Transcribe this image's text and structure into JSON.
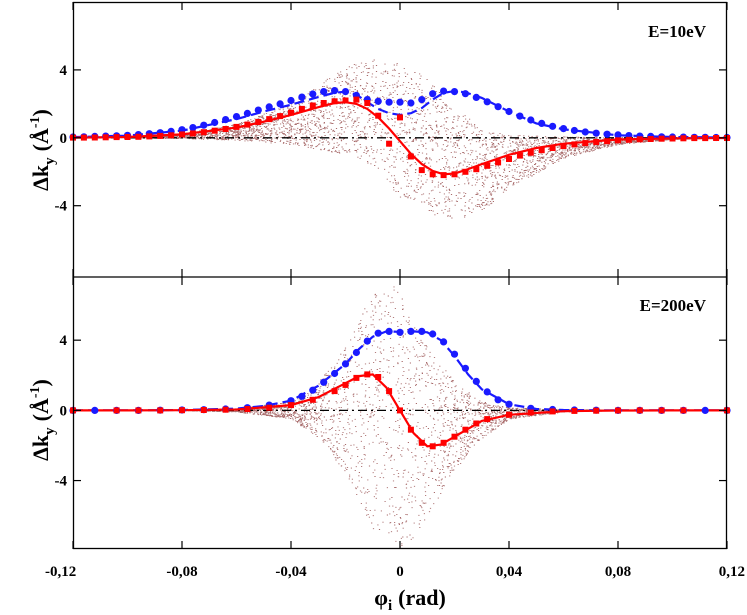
{
  "chart_data": {
    "type": "scatter",
    "x_axis": {
      "label_symbol": "φ",
      "label_subscript": "i",
      "label_unit": "(rad)",
      "range": [
        -0.12,
        0.12
      ],
      "ticks": [
        -0.12,
        -0.08,
        -0.04,
        0,
        0.04,
        0.08,
        0.12
      ],
      "tick_labels": [
        "-0,12",
        "-0,08",
        "-0,04",
        "0",
        "0,04",
        "0,08",
        "0,12"
      ]
    },
    "y_axis_label": {
      "prefix": "Δk",
      "subscript": "y",
      "open": "(",
      "unit": "Å",
      "superscript": "-1",
      "close": ")"
    },
    "colors": {
      "blue": "#1a1aff",
      "red": "#ff0000",
      "scatter": "#8b3a3a",
      "zero_line": "#000000"
    },
    "panels": [
      {
        "energy_label": "E=10eV",
        "ylim": [
          -8.2,
          8.0
        ],
        "yticks": [
          -4,
          0,
          4
        ],
        "ytick_labels": [
          "-4",
          "0",
          "4"
        ],
        "series": [
          {
            "name": "blue circles",
            "x": [
              -0.12,
              -0.116,
              -0.112,
              -0.108,
              -0.104,
              -0.1,
              -0.096,
              -0.092,
              -0.088,
              -0.084,
              -0.08,
              -0.076,
              -0.072,
              -0.068,
              -0.064,
              -0.06,
              -0.056,
              -0.052,
              -0.048,
              -0.044,
              -0.04,
              -0.036,
              -0.032,
              -0.028,
              -0.024,
              -0.02,
              -0.016,
              -0.012,
              -0.008,
              -0.004,
              0,
              0.004,
              0.008,
              0.012,
              0.016,
              0.02,
              0.024,
              0.028,
              0.032,
              0.036,
              0.04,
              0.044,
              0.048,
              0.052,
              0.056,
              0.06,
              0.064,
              0.068,
              0.072,
              0.076,
              0.08,
              0.084,
              0.088,
              0.092,
              0.096,
              0.1,
              0.104,
              0.108,
              0.112,
              0.116,
              0.12
            ],
            "y": [
              0.05,
              0.06,
              0.08,
              0.1,
              0.12,
              0.15,
              0.19,
              0.24,
              0.3,
              0.38,
              0.48,
              0.6,
              0.74,
              0.9,
              1.07,
              1.25,
              1.44,
              1.63,
              1.82,
              2.0,
              2.2,
              2.4,
              2.58,
              2.72,
              2.78,
              2.72,
              2.5,
              2.25,
              2.15,
              2.1,
              2.1,
              2.05,
              2.25,
              2.6,
              2.75,
              2.72,
              2.6,
              2.38,
              2.12,
              1.83,
              1.55,
              1.28,
              1.05,
              0.85,
              0.68,
              0.54,
              0.43,
              0.34,
              0.27,
              0.21,
              0.17,
              0.13,
              0.1,
              0.08,
              0.06,
              0.05,
              0.04,
              0.03,
              0.03,
              0.02,
              0.02
            ]
          },
          {
            "name": "blue dashed",
            "x": [
              -0.12,
              -0.1,
              -0.08,
              -0.06,
              -0.05,
              -0.04,
              -0.03,
              -0.024,
              -0.02,
              -0.016,
              -0.012,
              -0.008,
              -0.004,
              0,
              0.004,
              0.008,
              0.012,
              0.016,
              0.02,
              0.024,
              0.03,
              0.04,
              0.05,
              0.06,
              0.08,
              0.1,
              0.12
            ],
            "y": [
              0.04,
              0.13,
              0.42,
              1.1,
              1.55,
              1.95,
              2.4,
              2.65,
              2.72,
              2.55,
              2.1,
              1.7,
              1.45,
              1.35,
              1.45,
              1.75,
              2.25,
              2.65,
              2.75,
              2.68,
              2.35,
              1.55,
              0.85,
              0.5,
              0.15,
              0.05,
              0.02
            ]
          },
          {
            "name": "red squares",
            "x": [
              -0.12,
              -0.116,
              -0.112,
              -0.108,
              -0.104,
              -0.1,
              -0.096,
              -0.092,
              -0.088,
              -0.084,
              -0.08,
              -0.076,
              -0.072,
              -0.068,
              -0.064,
              -0.06,
              -0.056,
              -0.052,
              -0.048,
              -0.044,
              -0.04,
              -0.036,
              -0.032,
              -0.028,
              -0.024,
              -0.02,
              -0.016,
              -0.012,
              -0.008,
              -0.004,
              0,
              0.004,
              0.008,
              0.012,
              0.016,
              0.02,
              0.024,
              0.028,
              0.032,
              0.036,
              0.04,
              0.044,
              0.048,
              0.052,
              0.056,
              0.06,
              0.064,
              0.068,
              0.072,
              0.076,
              0.08,
              0.084,
              0.088,
              0.092,
              0.096,
              0.1,
              0.104,
              0.108,
              0.112,
              0.116,
              0.12
            ],
            "y": [
              0.01,
              0.01,
              0.02,
              0.03,
              0.04,
              0.05,
              0.06,
              0.08,
              0.11,
              0.15,
              0.2,
              0.26,
              0.33,
              0.42,
              0.52,
              0.64,
              0.78,
              0.93,
              1.1,
              1.28,
              1.48,
              1.7,
              1.9,
              2.05,
              2.15,
              2.2,
              2.25,
              2.05,
              1.3,
              -0.35,
              1.2,
              -1.1,
              -1.9,
              -2.15,
              -2.2,
              -2.15,
              -2.0,
              -1.85,
              -1.65,
              -1.45,
              -1.25,
              -1.05,
              -0.88,
              -0.73,
              -0.6,
              -0.49,
              -0.39,
              -0.31,
              -0.25,
              -0.2,
              -0.15,
              -0.12,
              -0.09,
              -0.07,
              -0.05,
              -0.04,
              -0.03,
              -0.02,
              -0.02,
              -0.01,
              -0.01
            ]
          },
          {
            "name": "red line",
            "x": [
              -0.12,
              -0.1,
              -0.08,
              -0.06,
              -0.05,
              -0.04,
              -0.03,
              -0.024,
              -0.02,
              -0.016,
              -0.012,
              -0.008,
              -0.004,
              0,
              0.004,
              0.008,
              0.012,
              0.016,
              0.02,
              0.024,
              0.03,
              0.04,
              0.05,
              0.06,
              0.08,
              0.1,
              0.12
            ],
            "y": [
              0.01,
              0.05,
              0.2,
              0.6,
              0.95,
              1.35,
              1.8,
              2.05,
              2.1,
              2.0,
              1.7,
              1.2,
              0.55,
              -0.2,
              -0.95,
              -1.55,
              -1.95,
              -2.15,
              -2.1,
              -1.9,
              -1.55,
              -1.0,
              -0.6,
              -0.35,
              -0.1,
              -0.03,
              -0.01
            ]
          },
          {
            "name": "brown scatter envelope",
            "x": [
              -0.12,
              -0.1,
              -0.08,
              -0.06,
              -0.04,
              -0.03,
              -0.02,
              -0.01,
              0,
              0.01,
              0.02,
              0.03,
              0.04,
              0.06,
              0.08,
              0.1,
              0.12
            ],
            "upper": [
              0.02,
              0.08,
              0.25,
              0.8,
              2.0,
              3.1,
              4.2,
              4.6,
              4.4,
              3.5,
              1.8,
              0.5,
              0.15,
              0.05,
              0.02,
              0.01,
              0.0
            ],
            "lower": [
              0.0,
              -0.01,
              -0.05,
              -0.15,
              -0.4,
              -0.7,
              -1.0,
              -1.8,
              -3.5,
              -4.6,
              -4.9,
              -4.3,
              -3.0,
              -1.2,
              -0.4,
              -0.1,
              -0.02
            ]
          }
        ]
      },
      {
        "energy_label": "E=200eV",
        "ylim": [
          -7.9,
          7.6
        ],
        "yticks": [
          -4,
          0,
          4
        ],
        "ytick_labels": [
          "-4",
          "0",
          "4"
        ],
        "series": [
          {
            "name": "blue circles",
            "x": [
              -0.12,
              -0.112,
              -0.104,
              -0.096,
              -0.088,
              -0.08,
              -0.072,
              -0.064,
              -0.056,
              -0.048,
              -0.04,
              -0.036,
              -0.032,
              -0.028,
              -0.024,
              -0.02,
              -0.016,
              -0.012,
              -0.008,
              -0.004,
              0,
              0.004,
              0.008,
              0.012,
              0.016,
              0.02,
              0.024,
              0.028,
              0.032,
              0.036,
              0.04,
              0.048,
              0.056,
              0.064,
              0.072,
              0.08,
              0.088,
              0.096,
              0.104,
              0.112,
              0.12
            ],
            "y": [
              0.0,
              0.0,
              0.0,
              0.0,
              0.01,
              0.02,
              0.04,
              0.08,
              0.15,
              0.3,
              0.55,
              0.8,
              1.15,
              1.6,
              2.1,
              2.65,
              3.3,
              3.95,
              4.4,
              4.5,
              4.45,
              4.5,
              4.5,
              4.35,
              3.9,
              3.2,
              2.4,
              1.65,
              1.05,
              0.6,
              0.35,
              0.12,
              0.05,
              0.02,
              0.01,
              0.0,
              0.0,
              0.0,
              0.0,
              0.0,
              0.0
            ]
          },
          {
            "name": "blue dashed",
            "x": [
              -0.12,
              -0.1,
              -0.08,
              -0.06,
              -0.05,
              -0.04,
              -0.03,
              -0.02,
              -0.015,
              -0.01,
              -0.005,
              0,
              0.005,
              0.01,
              0.015,
              0.02,
              0.025,
              0.03,
              0.04,
              0.05,
              0.06,
              0.08,
              0.1,
              0.12
            ],
            "y": [
              0.0,
              0.0,
              0.02,
              0.1,
              0.25,
              0.55,
              1.4,
              2.65,
              3.5,
              4.2,
              4.5,
              4.48,
              4.5,
              4.45,
              4.0,
              3.1,
              2.05,
              1.2,
              0.35,
              0.08,
              0.02,
              0.0,
              0.0,
              0.0
            ]
          },
          {
            "name": "red squares",
            "x": [
              -0.12,
              -0.104,
              -0.096,
              -0.088,
              -0.08,
              -0.072,
              -0.064,
              -0.056,
              -0.048,
              -0.04,
              -0.032,
              -0.024,
              -0.02,
              -0.016,
              -0.012,
              -0.008,
              -0.004,
              0,
              0.004,
              0.008,
              0.012,
              0.016,
              0.02,
              0.024,
              0.028,
              0.032,
              0.04,
              0.048,
              0.056,
              0.064,
              0.072,
              0.08,
              0.088,
              0.096,
              0.104,
              0.12
            ],
            "y": [
              0.0,
              0.0,
              0.0,
              0.0,
              0.01,
              0.02,
              0.04,
              0.08,
              0.15,
              0.3,
              0.6,
              1.1,
              1.45,
              1.85,
              2.05,
              1.9,
              1.1,
              0.0,
              -1.1,
              -1.85,
              -2.05,
              -1.85,
              -1.5,
              -1.1,
              -0.75,
              -0.5,
              -0.25,
              -0.12,
              -0.06,
              -0.03,
              -0.02,
              -0.01,
              0.0,
              0.0,
              0.0,
              0.0
            ]
          },
          {
            "name": "red line",
            "x": [
              -0.12,
              -0.1,
              -0.08,
              -0.06,
              -0.04,
              -0.03,
              -0.02,
              -0.015,
              -0.01,
              -0.005,
              0,
              0.005,
              0.01,
              0.015,
              0.02,
              0.03,
              0.04,
              0.06,
              0.08,
              0.1,
              0.12
            ],
            "y": [
              0.0,
              0.0,
              0.01,
              0.05,
              0.3,
              0.75,
              1.55,
              1.95,
              2.05,
              1.3,
              0.0,
              -1.3,
              -2.05,
              -1.95,
              -1.5,
              -0.6,
              -0.25,
              -0.05,
              -0.01,
              0.0,
              0.0
            ]
          },
          {
            "name": "brown scatter envelope",
            "x": [
              -0.12,
              -0.08,
              -0.06,
              -0.04,
              -0.03,
              -0.02,
              -0.015,
              -0.01,
              -0.005,
              0,
              0.005,
              0.01,
              0.02,
              0.03,
              0.04,
              0.06,
              0.08,
              0.12
            ],
            "upper": [
              0.0,
              0.02,
              0.1,
              0.5,
              1.6,
              3.6,
              5.2,
              6.8,
              7.5,
              6.8,
              5.2,
              3.6,
              1.6,
              0.5,
              0.15,
              0.04,
              0.01,
              0.0
            ],
            "lower": [
              0.0,
              -0.02,
              -0.1,
              -0.5,
              -1.6,
              -3.6,
              -5.2,
              -6.8,
              -7.5,
              -7.8,
              -7.3,
              -6.0,
              -3.4,
              -1.6,
              -0.5,
              -0.1,
              -0.02,
              0.0
            ]
          }
        ]
      }
    ]
  }
}
